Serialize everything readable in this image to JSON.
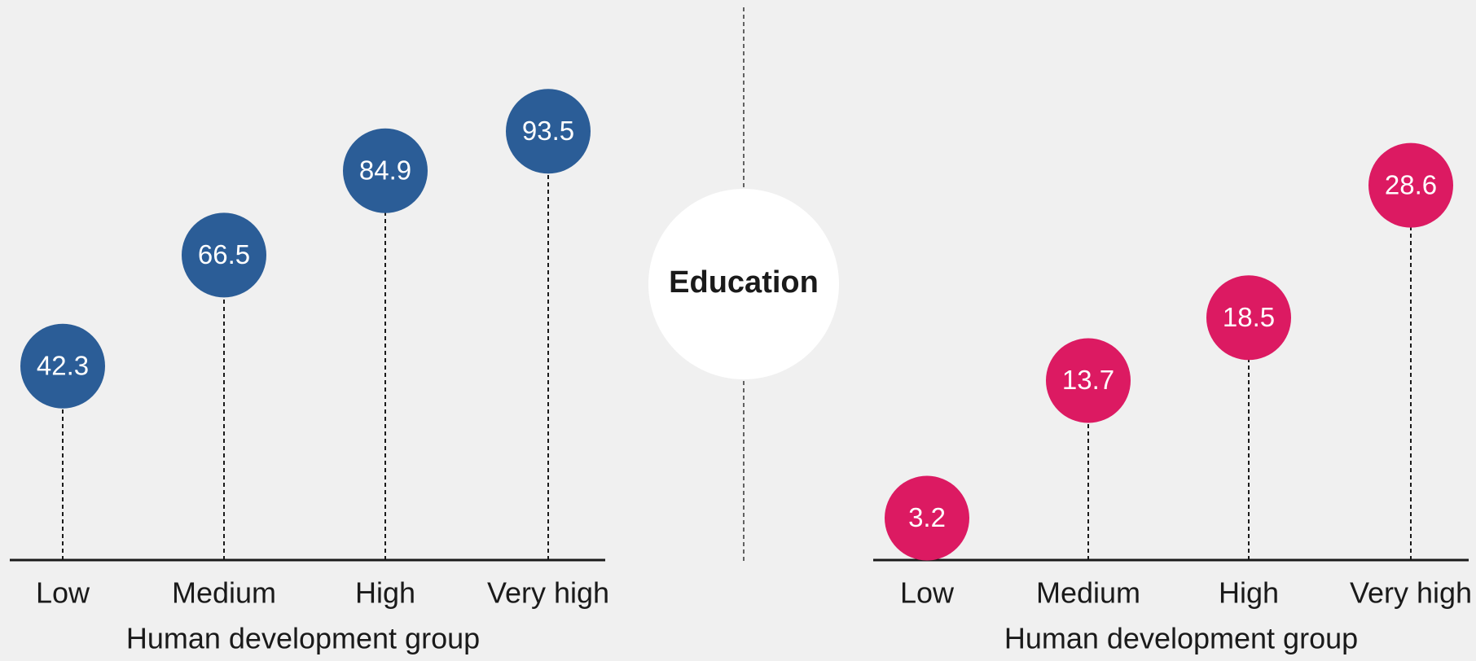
{
  "label": "Education",
  "chart_data": [
    {
      "type": "lollipop",
      "xlabel": "Human development group",
      "categories": [
        "Low",
        "Medium",
        "High",
        "Very high"
      ],
      "values": [
        42.3,
        66.5,
        84.9,
        93.5
      ],
      "color": "#2b5d97",
      "ylim": [
        0,
        120
      ]
    },
    {
      "type": "lollipop",
      "xlabel": "Human development group",
      "categories": [
        "Low",
        "Medium",
        "High",
        "Very high"
      ],
      "values": [
        3.2,
        13.7,
        18.5,
        28.6
      ],
      "color": "#dc1a62",
      "ylim": [
        0,
        42
      ]
    }
  ]
}
